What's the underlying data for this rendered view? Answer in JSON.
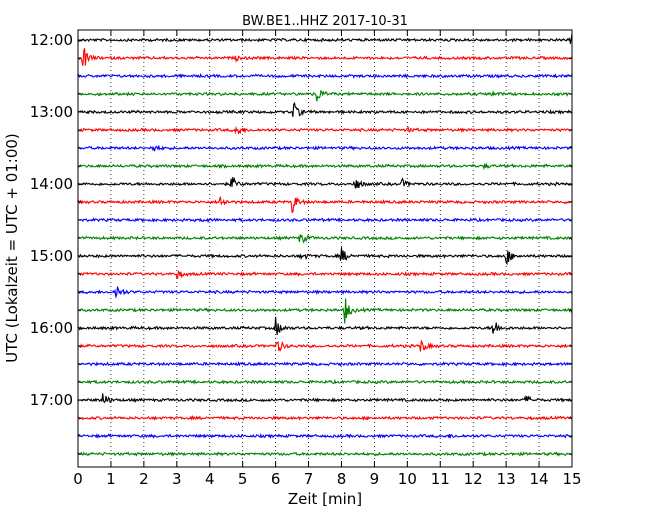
{
  "chart_data": {
    "type": "line",
    "title": "BW.BE1..HHZ 2017-10-31",
    "xlabel": "Zeit  [min]",
    "ylabel": "UTC (Lokalzeit = UTC + 01:00)",
    "xlim": [
      0,
      15
    ],
    "x_ticks": [
      "0",
      "1",
      "2",
      "3",
      "4",
      "5",
      "6",
      "7",
      "8",
      "9",
      "10",
      "11",
      "12",
      "13",
      "14",
      "15"
    ],
    "y_ticks": [
      "12:00",
      "13:00",
      "14:00",
      "15:00",
      "16:00",
      "17:00"
    ],
    "grid": "vertical-dotted",
    "traces": [
      {
        "start": "12:00",
        "color": "#000000",
        "events": [
          [
            14.98,
            0.5
          ]
        ]
      },
      {
        "start": "12:15",
        "color": "#ff0000",
        "events": [
          [
            0.15,
            1.0
          ],
          [
            4.8,
            0.12
          ]
        ]
      },
      {
        "start": "12:30",
        "color": "#0000ff",
        "events": []
      },
      {
        "start": "12:45",
        "color": "#008000",
        "events": [
          [
            7.25,
            0.6
          ],
          [
            12.5,
            0.2
          ]
        ]
      },
      {
        "start": "13:00",
        "color": "#000000",
        "events": [
          [
            6.55,
            0.7
          ]
        ]
      },
      {
        "start": "13:15",
        "color": "#ff0000",
        "events": [
          [
            4.8,
            0.5
          ],
          [
            10.0,
            0.15
          ]
        ]
      },
      {
        "start": "13:30",
        "color": "#0000ff",
        "events": [
          [
            2.3,
            0.35
          ]
        ]
      },
      {
        "start": "13:45",
        "color": "#008000",
        "events": [
          [
            12.3,
            0.15
          ]
        ]
      },
      {
        "start": "14:00",
        "color": "#000000",
        "events": [
          [
            4.65,
            0.6
          ],
          [
            8.4,
            0.6
          ],
          [
            9.85,
            0.3
          ]
        ]
      },
      {
        "start": "14:15",
        "color": "#ff0000",
        "events": [
          [
            4.3,
            0.5
          ],
          [
            6.5,
            0.85
          ]
        ]
      },
      {
        "start": "14:30",
        "color": "#0000ff",
        "events": [
          [
            3.8,
            0.15
          ]
        ]
      },
      {
        "start": "14:45",
        "color": "#008000",
        "events": [
          [
            6.75,
            0.5
          ]
        ]
      },
      {
        "start": "15:00",
        "color": "#000000",
        "events": [
          [
            6.8,
            0.3
          ],
          [
            8.0,
            0.6
          ],
          [
            13.0,
            0.7
          ]
        ]
      },
      {
        "start": "15:15",
        "color": "#ff0000",
        "events": [
          [
            3.0,
            0.35
          ]
        ]
      },
      {
        "start": "15:30",
        "color": "#0000ff",
        "events": [
          [
            1.15,
            0.65
          ]
        ]
      },
      {
        "start": "15:45",
        "color": "#008000",
        "events": [
          [
            8.1,
            1.0
          ]
        ]
      },
      {
        "start": "16:00",
        "color": "#000000",
        "events": [
          [
            6.0,
            0.75
          ],
          [
            12.6,
            0.8
          ]
        ]
      },
      {
        "start": "16:15",
        "color": "#ff0000",
        "events": [
          [
            6.05,
            0.55
          ],
          [
            10.4,
            0.55
          ]
        ]
      },
      {
        "start": "16:30",
        "color": "#0000ff",
        "events": []
      },
      {
        "start": "16:45",
        "color": "#008000",
        "events": []
      },
      {
        "start": "17:00",
        "color": "#000000",
        "events": [
          [
            0.75,
            0.6
          ],
          [
            13.6,
            0.3
          ]
        ]
      },
      {
        "start": "17:15",
        "color": "#ff0000",
        "events": []
      },
      {
        "start": "17:30",
        "color": "#0000ff",
        "events": [
          [
            11.3,
            0.12
          ]
        ]
      },
      {
        "start": "17:45",
        "color": "#008000",
        "events": []
      }
    ]
  }
}
